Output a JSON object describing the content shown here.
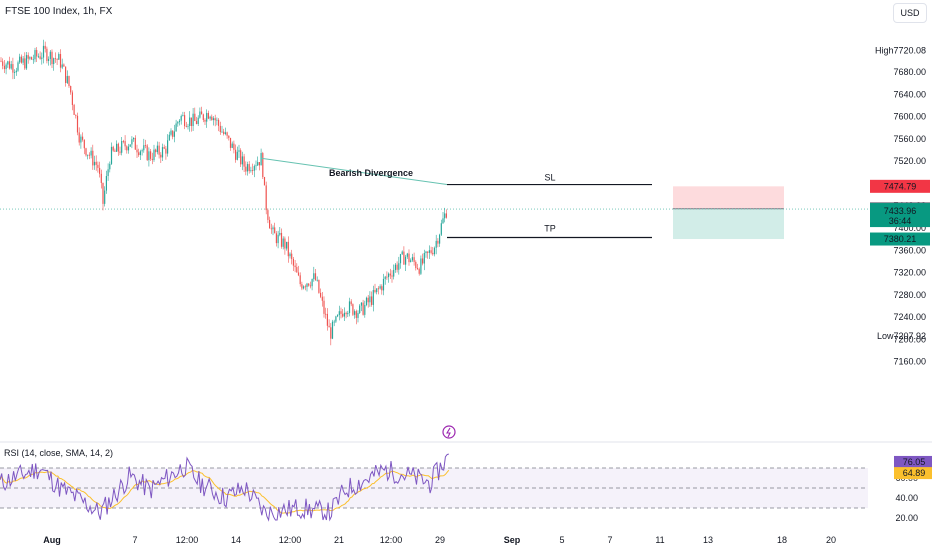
{
  "header": {
    "title": "FTSE 100 Index, 1h, FX",
    "currency": "USD"
  },
  "annotations": {
    "divergence": "Bearish Divergence",
    "sl": "SL",
    "tp": "TP"
  },
  "price_axis": {
    "ticks": [
      "7680.00",
      "7640.00",
      "7600.00",
      "7560.00",
      "7520.00",
      "7480.00",
      "7440.00",
      "7400.00",
      "7360.00",
      "7320.00",
      "7280.00",
      "7240.00",
      "7200.00",
      "7160.00"
    ],
    "high_label": "High",
    "high_value": "7720.08",
    "low_label": "Low",
    "low_value": "7207.92",
    "badges": {
      "sl": "7474.79",
      "entry": "7434.54",
      "last": "7433.96",
      "countdown": "36:44",
      "tp": "7380.21"
    }
  },
  "rsi": {
    "title": "RSI (14, close, SMA, 14, 2)",
    "value": "76.05",
    "ma_value": "64.89",
    "ticks": [
      "80.00",
      "60.00",
      "40.00",
      "20.00"
    ],
    "upper": 70,
    "middle": 50,
    "lower": 30
  },
  "time_axis": [
    "Aug",
    "7",
    "12:00",
    "14",
    "12:00",
    "21",
    "12:00",
    "29",
    "Sep",
    "5",
    "7",
    "11",
    "13",
    "18",
    "20"
  ],
  "colors": {
    "up": "#26a69a",
    "down": "#ef5350",
    "sl_badge": "#f23645",
    "tp_badge": "#089981",
    "entry_badge": "#787b86",
    "rsi_line": "#7e57c2",
    "rsi_ma": "#fbc02d",
    "divergence_label": "#f23645",
    "divergence_line": "#66c2b1"
  },
  "chart_data": [
    {
      "type": "candlestick",
      "title": "FTSE 100 Index, 1h, FX",
      "ylim": [
        7150,
        7730
      ],
      "key_points": [
        {
          "x": "late Jul",
          "price": 7710
        },
        {
          "x": "Aug 1",
          "price": 7710
        },
        {
          "x": "Aug 3",
          "price": 7440
        },
        {
          "x": "Aug 9",
          "price": 7600
        },
        {
          "x": "Aug 14",
          "price": 7500
        },
        {
          "x": "Aug 15",
          "price": 7520
        },
        {
          "x": "Aug 18",
          "price": 7300
        },
        {
          "x": "Aug 21",
          "price": 7210
        },
        {
          "x": "Aug 24",
          "price": 7260
        },
        {
          "x": "Aug 29",
          "price": 7480
        }
      ],
      "levels": {
        "sl": 7474.79,
        "entry": 7434.54,
        "last": 7433.96,
        "tp": 7380.21,
        "high": 7720.08,
        "low": 7207.92
      }
    },
    {
      "type": "line",
      "title": "RSI (14, close, SMA, 14, 2)",
      "ylim": [
        15,
        85
      ],
      "bands": [
        70,
        50,
        30
      ],
      "last_rsi": 76.05,
      "last_ma": 64.89
    }
  ]
}
